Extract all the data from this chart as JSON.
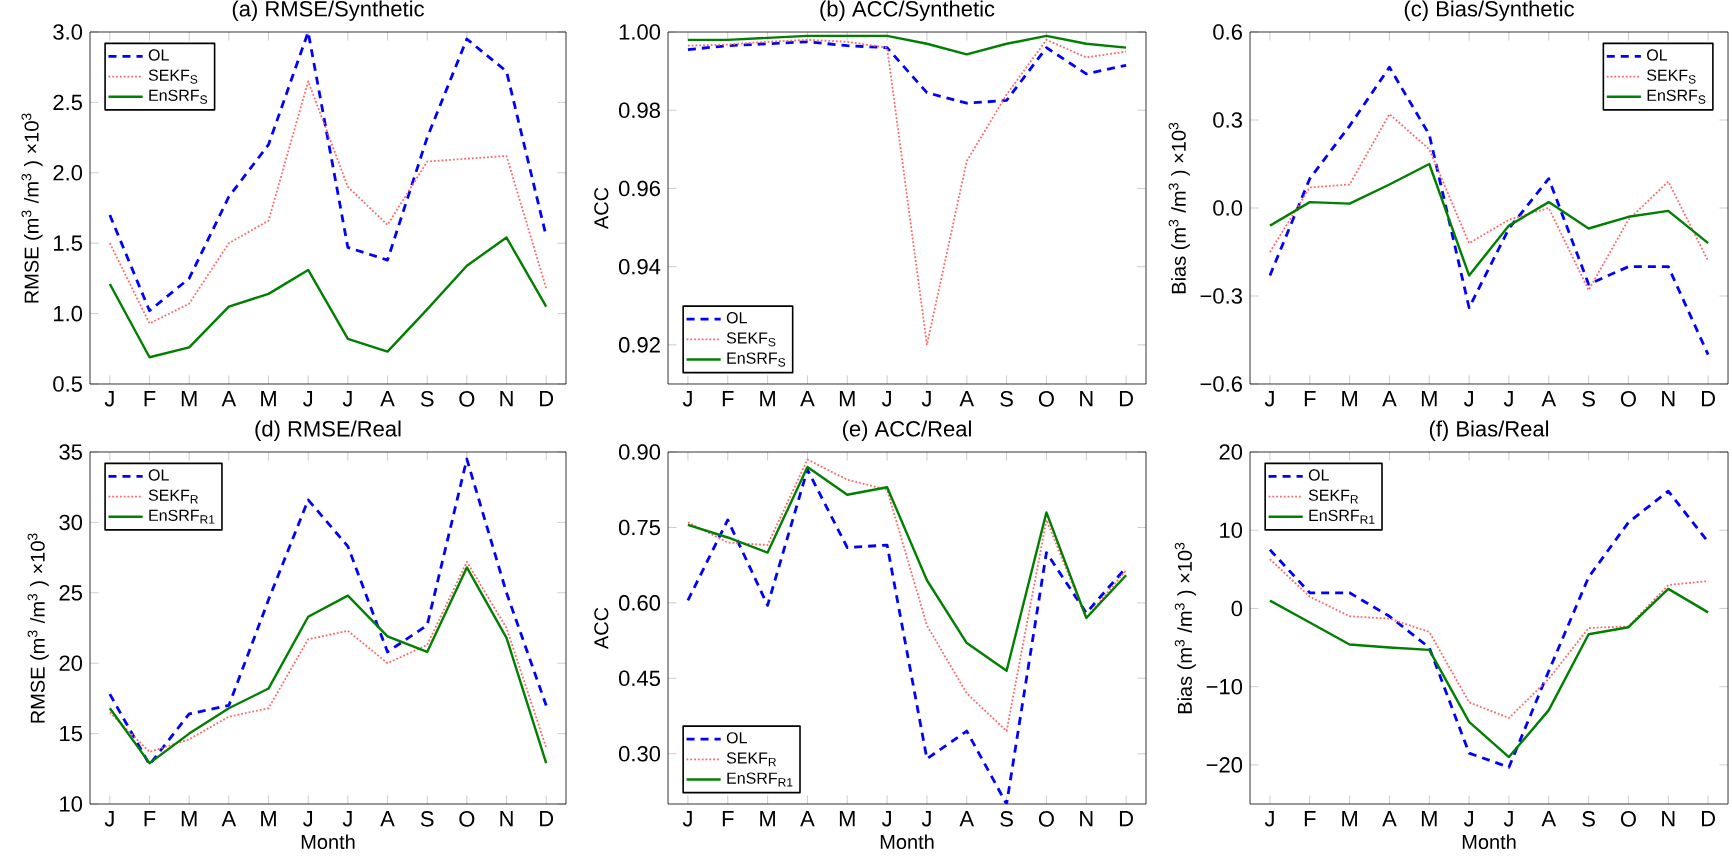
{
  "chart_data": [
    {
      "type": "line",
      "title": "(a) RMSE/Synthetic",
      "ylabel": "RMSE (m$^{3}$ /m$^{3}$ )  ×10$^{3}$",
      "categories": [
        "J",
        "F",
        "M",
        "A",
        "M",
        "J",
        "J",
        "A",
        "S",
        "O",
        "N",
        "D"
      ],
      "ylim": [
        0.5,
        3.0
      ],
      "yticks": [
        {
          "value": 0.5,
          "label": "0.5"
        },
        {
          "value": 1.0,
          "label": "1.0"
        },
        {
          "value": 1.5,
          "label": "1.5"
        },
        {
          "value": 2.0,
          "label": "2.0"
        },
        {
          "value": 2.5,
          "label": "2.5"
        },
        {
          "value": 3.0,
          "label": "3.0"
        }
      ],
      "grid": false,
      "legend": "top left",
      "marker": "none",
      "series": [
        {
          "name": "OL",
          "color": "#0000ff",
          "line_style": "dashed",
          "values": [
            1.7,
            1.02,
            1.25,
            1.83,
            2.2,
            3.0,
            1.47,
            1.38,
            2.25,
            2.95,
            2.72,
            1.55
          ]
        },
        {
          "name": "SEKF$_{S}$",
          "color": "#ff6666",
          "line_style": "dotted",
          "values": [
            1.5,
            0.93,
            1.07,
            1.5,
            1.66,
            2.65,
            1.9,
            1.63,
            2.08,
            2.1,
            2.12,
            1.18
          ]
        },
        {
          "name": "EnSRF$_{S}$",
          "color": "#007f00",
          "line_style": "solid",
          "values": [
            1.21,
            0.69,
            0.76,
            1.05,
            1.14,
            1.31,
            0.82,
            0.73,
            1.03,
            1.34,
            1.54,
            1.05
          ]
        }
      ]
    },
    {
      "type": "line",
      "title": "(b) ACC/Synthetic",
      "ylabel": "ACC",
      "categories": [
        "J",
        "F",
        "M",
        "A",
        "M",
        "J",
        "J",
        "A",
        "S",
        "O",
        "N",
        "D"
      ],
      "ylim": [
        0.91,
        1.0
      ],
      "yticks": [
        {
          "value": 0.92,
          "label": "0.92"
        },
        {
          "value": 0.94,
          "label": "0.94"
        },
        {
          "value": 0.96,
          "label": "0.96"
        },
        {
          "value": 0.98,
          "label": "0.98"
        },
        {
          "value": 1.0,
          "label": "1.00"
        }
      ],
      "grid": false,
      "legend": "bottom left",
      "marker": "none",
      "series": [
        {
          "name": "OL",
          "color": "#0000ff",
          "line_style": "dashed",
          "values": [
            0.9955,
            0.9965,
            0.997,
            0.9975,
            0.9965,
            0.996,
            0.9845,
            0.9818,
            0.9825,
            0.996,
            0.9893,
            0.9915
          ]
        },
        {
          "name": "SEKF$_{S}$",
          "color": "#ff6666",
          "line_style": "dotted",
          "values": [
            0.9965,
            0.9968,
            0.9975,
            0.998,
            0.9975,
            0.996,
            0.92,
            0.967,
            0.984,
            0.998,
            0.9935,
            0.995
          ]
        },
        {
          "name": "EnSRF$_{S}$",
          "color": "#007f00",
          "line_style": "solid",
          "values": [
            0.998,
            0.998,
            0.9985,
            0.999,
            0.999,
            0.999,
            0.997,
            0.9943,
            0.997,
            0.999,
            0.997,
            0.996
          ]
        }
      ]
    },
    {
      "type": "line",
      "title": "(c) Bias/Synthetic",
      "ylabel": "Bias (m$^{3}$ /m$^{3}$ )  ×10$^{3}$",
      "categories": [
        "J",
        "F",
        "M",
        "A",
        "M",
        "J",
        "J",
        "A",
        "S",
        "O",
        "N",
        "D"
      ],
      "ylim": [
        -0.6,
        0.6
      ],
      "yticks": [
        {
          "value": -0.6,
          "label": "−0.6"
        },
        {
          "value": -0.3,
          "label": "−0.3"
        },
        {
          "value": 0.0,
          "label": "0.0"
        },
        {
          "value": 0.3,
          "label": "0.3"
        },
        {
          "value": 0.6,
          "label": "0.6"
        }
      ],
      "grid": false,
      "legend": "top right",
      "marker": "none",
      "series": [
        {
          "name": "OL",
          "color": "#0000ff",
          "line_style": "dashed",
          "values": [
            -0.23,
            0.1,
            0.28,
            0.48,
            0.25,
            -0.34,
            -0.07,
            0.1,
            -0.26,
            -0.2,
            -0.2,
            -0.5
          ]
        },
        {
          "name": "SEKF$_{S}$",
          "color": "#ff6666",
          "line_style": "dotted",
          "values": [
            -0.15,
            0.07,
            0.08,
            0.32,
            0.2,
            -0.12,
            -0.04,
            0.0,
            -0.28,
            -0.04,
            0.09,
            -0.18
          ]
        },
        {
          "name": "EnSRF$_{S}$",
          "color": "#007f00",
          "line_style": "solid",
          "values": [
            -0.06,
            0.02,
            0.015,
            0.08,
            0.15,
            -0.23,
            -0.06,
            0.02,
            -0.07,
            -0.03,
            -0.01,
            -0.12
          ]
        }
      ]
    },
    {
      "type": "line",
      "title": "(d) RMSE/Real",
      "xlabel": "Month",
      "ylabel": "RMSE (m$^{3}$ /m$^{3}$ )  ×10$^{3}$",
      "categories": [
        "J",
        "F",
        "M",
        "A",
        "M",
        "J",
        "J",
        "A",
        "S",
        "O",
        "N",
        "D"
      ],
      "ylim": [
        10,
        35
      ],
      "yticks": [
        10,
        15,
        20,
        25,
        30,
        35
      ],
      "grid": false,
      "legend": "top left",
      "marker": "none",
      "series": [
        {
          "name": "OL",
          "color": "#0000ff",
          "line_style": "dashed",
          "values": [
            17.8,
            12.8,
            16.4,
            17.0,
            24.5,
            31.6,
            28.3,
            20.8,
            22.7,
            34.5,
            25.0,
            17.0
          ]
        },
        {
          "name": "SEKF$_{R}$",
          "color": "#ff6666",
          "line_style": "dotted",
          "values": [
            16.5,
            13.7,
            14.6,
            16.2,
            16.8,
            21.7,
            22.3,
            20.0,
            21.3,
            27.2,
            22.5,
            14.0
          ]
        },
        {
          "name": "EnSRF$_{R1}$",
          "color": "#007f00",
          "line_style": "solid",
          "values": [
            16.8,
            12.9,
            15.0,
            16.8,
            18.2,
            23.3,
            24.8,
            21.9,
            20.8,
            26.8,
            21.8,
            12.9
          ]
        }
      ]
    },
    {
      "type": "line",
      "title": "(e) ACC/Real",
      "xlabel": "Month",
      "ylabel": "ACC",
      "categories": [
        "J",
        "F",
        "M",
        "A",
        "M",
        "J",
        "J",
        "A",
        "S",
        "O",
        "N",
        "D"
      ],
      "ylim": [
        0.2,
        0.9
      ],
      "yticks": [
        {
          "value": 0.3,
          "label": "0.30"
        },
        {
          "value": 0.45,
          "label": "0.45"
        },
        {
          "value": 0.6,
          "label": "0.60"
        },
        {
          "value": 0.75,
          "label": "0.75"
        },
        {
          "value": 0.9,
          "label": "0.90"
        }
      ],
      "grid": false,
      "legend": "bottom left",
      "marker": "none",
      "series": [
        {
          "name": "OL",
          "color": "#0000ff",
          "line_style": "dashed",
          "values": [
            0.605,
            0.765,
            0.595,
            0.865,
            0.71,
            0.715,
            0.29,
            0.345,
            0.2,
            0.7,
            0.58,
            0.67
          ]
        },
        {
          "name": "SEKF$_{R}$",
          "color": "#ff6666",
          "line_style": "dotted",
          "values": [
            0.76,
            0.72,
            0.715,
            0.885,
            0.845,
            0.825,
            0.555,
            0.42,
            0.345,
            0.765,
            0.57,
            0.665
          ]
        },
        {
          "name": "EnSRF$_{R1}$",
          "color": "#007f00",
          "line_style": "solid",
          "values": [
            0.755,
            0.73,
            0.7,
            0.87,
            0.815,
            0.83,
            0.645,
            0.52,
            0.465,
            0.78,
            0.57,
            0.655
          ]
        }
      ]
    },
    {
      "type": "line",
      "title": "(f) Bias/Real",
      "xlabel": "Month",
      "ylabel": "Bias (m$^{3}$ /m$^{3}$ )  ×10$^{3}$",
      "categories": [
        "J",
        "F",
        "M",
        "A",
        "M",
        "J",
        "J",
        "A",
        "S",
        "O",
        "N",
        "D"
      ],
      "ylim": [
        -25,
        20
      ],
      "yticks": [
        {
          "value": -20,
          "label": "−20"
        },
        {
          "value": -10,
          "label": "−10"
        },
        0,
        10,
        20
      ],
      "grid": false,
      "legend": "top left",
      "marker": "none",
      "series": [
        {
          "name": "OL",
          "color": "#0000ff",
          "line_style": "dashed",
          "values": [
            7.5,
            2,
            2,
            -1,
            -5,
            -18.5,
            -20.3,
            -8,
            4,
            11,
            15,
            8.5
          ]
        },
        {
          "name": "SEKF$_{R}$",
          "color": "#ff6666",
          "line_style": "dotted",
          "values": [
            6.3,
            1.5,
            -1,
            -1.3,
            -3,
            -12,
            -14,
            -9,
            -2.5,
            -2.3,
            3,
            3.5
          ]
        },
        {
          "name": "EnSRF$_{R1}$",
          "color": "#007f00",
          "line_style": "solid",
          "values": [
            1,
            -1.8,
            -4.6,
            -5,
            -5.3,
            -14.5,
            -19,
            -13,
            -3.3,
            -2.4,
            2.5,
            -0.5
          ]
        }
      ]
    }
  ]
}
